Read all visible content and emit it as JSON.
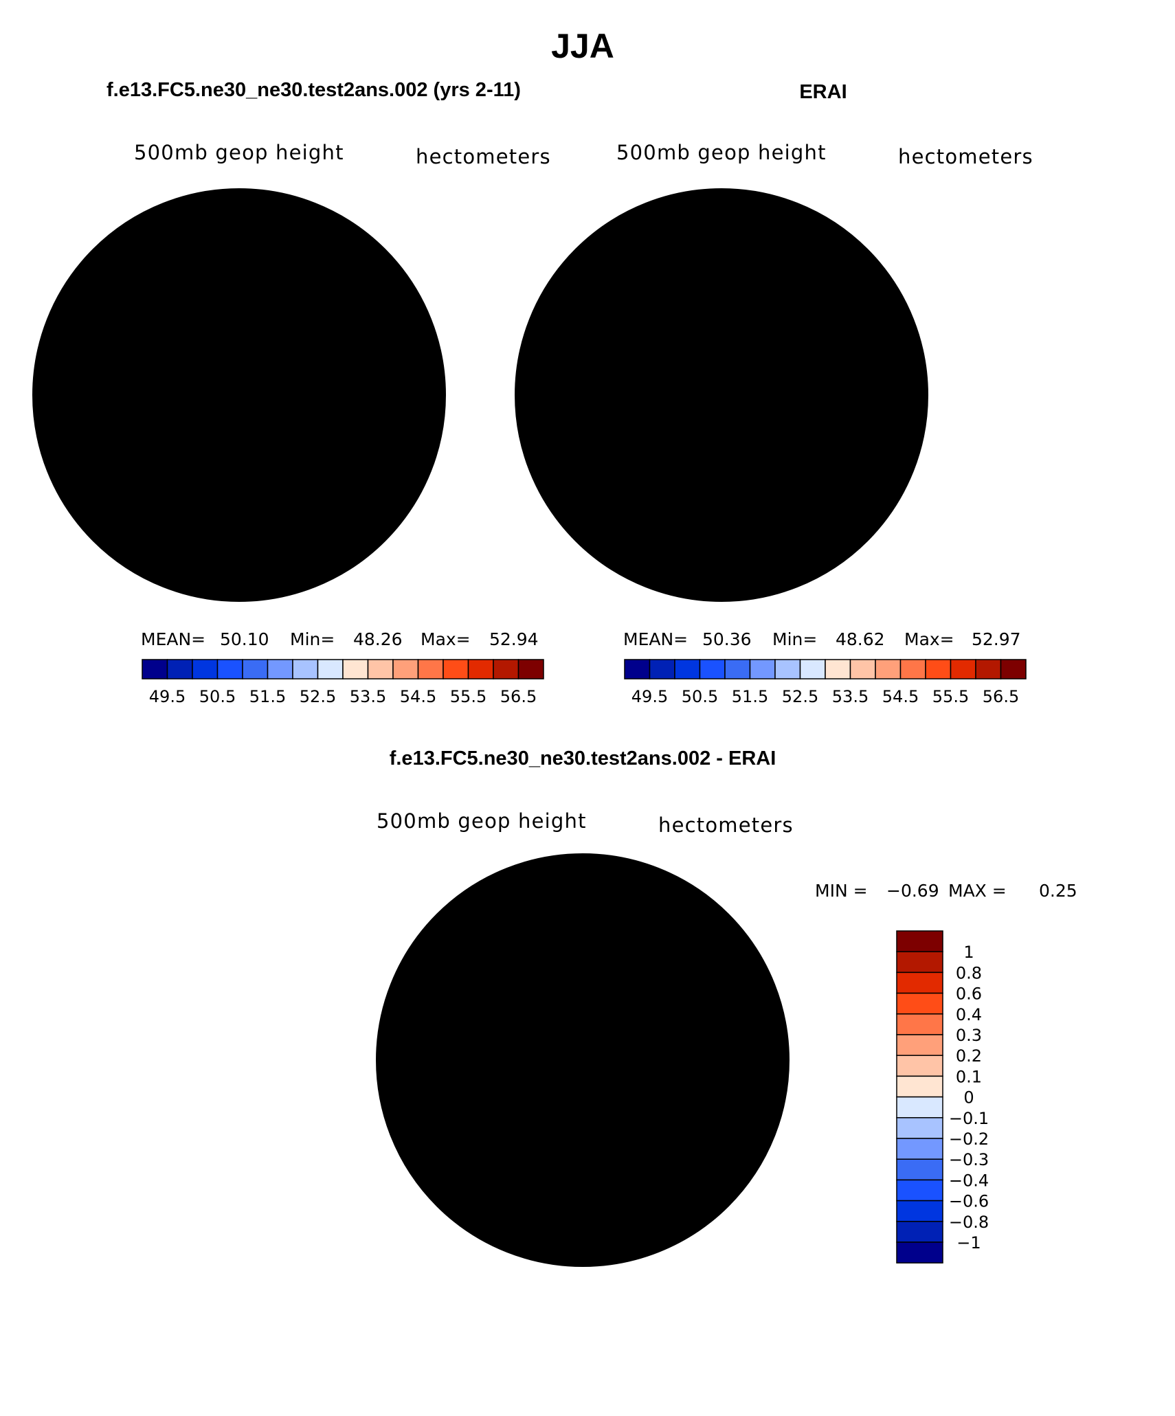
{
  "figure_title": "JJA",
  "colors": {
    "abs_palette": [
      "#00008c",
      "#0021b5",
      "#0036e0",
      "#1a52ff",
      "#3a6cf5",
      "#7398ff",
      "#a8c3ff",
      "#d9e8ff",
      "#ffe5d2",
      "#ffc4a7",
      "#ffa07a",
      "#ff7648",
      "#ff4d17",
      "#e22a00",
      "#b31800",
      "#7d0000"
    ],
    "diff_palette": [
      "#00008c",
      "#0021b5",
      "#0036e0",
      "#1a52ff",
      "#3a6cf5",
      "#7398ff",
      "#a8c3ff",
      "#d9e8ff",
      "#ffe5d2",
      "#ffc4a7",
      "#ffa07a",
      "#ff7648",
      "#ff4d17",
      "#e22a00",
      "#b31800",
      "#7d0000"
    ],
    "coastline": "#000000"
  },
  "chart_data": [
    {
      "type": "map",
      "projection": "south polar stereographic",
      "title": "f.e13.FC5.ne30_ne30.test2ans.002 (yrs 2-11)",
      "left_label": "500mb geop height",
      "right_label": "hectometers",
      "stats": {
        "mean_label": "MEAN=",
        "mean": "50.10",
        "min_label": "Min=",
        "min": "48.26",
        "max_label": "Max=",
        "max": "52.94"
      },
      "contour_levels": [
        "49.5",
        "50.5",
        "51.5",
        "52.5",
        "53.5",
        "54.5",
        "55.5",
        "56.5"
      ],
      "colorbar_orientation": "horizontal"
    },
    {
      "type": "map",
      "projection": "south polar stereographic",
      "title": "ERAI",
      "left_label": "500mb geop height",
      "right_label": "hectometers",
      "stats": {
        "mean_label": "MEAN=",
        "mean": "50.36",
        "min_label": "Min=",
        "min": "48.62",
        "max_label": "Max=",
        "max": "52.97"
      },
      "contour_levels": [
        "49.5",
        "50.5",
        "51.5",
        "52.5",
        "53.5",
        "54.5",
        "55.5",
        "56.5"
      ],
      "colorbar_orientation": "horizontal"
    },
    {
      "type": "map",
      "projection": "south polar stereographic",
      "title": "f.e13.FC5.ne30_ne30.test2ans.002 - ERAI",
      "left_label": "500mb geop height",
      "right_label": "hectometers",
      "minmax": {
        "min_label": "MIN =",
        "min": "−0.69",
        "max_label": "MAX =",
        "max": "0.25"
      },
      "contour_levels": [
        "1",
        "0.8",
        "0.6",
        "0.4",
        "0.3",
        "0.2",
        "0.1",
        "0",
        "−0.1",
        "−0.2",
        "−0.3",
        "−0.4",
        "−0.6",
        "−0.8",
        "−1"
      ],
      "colorbar_orientation": "vertical"
    }
  ]
}
